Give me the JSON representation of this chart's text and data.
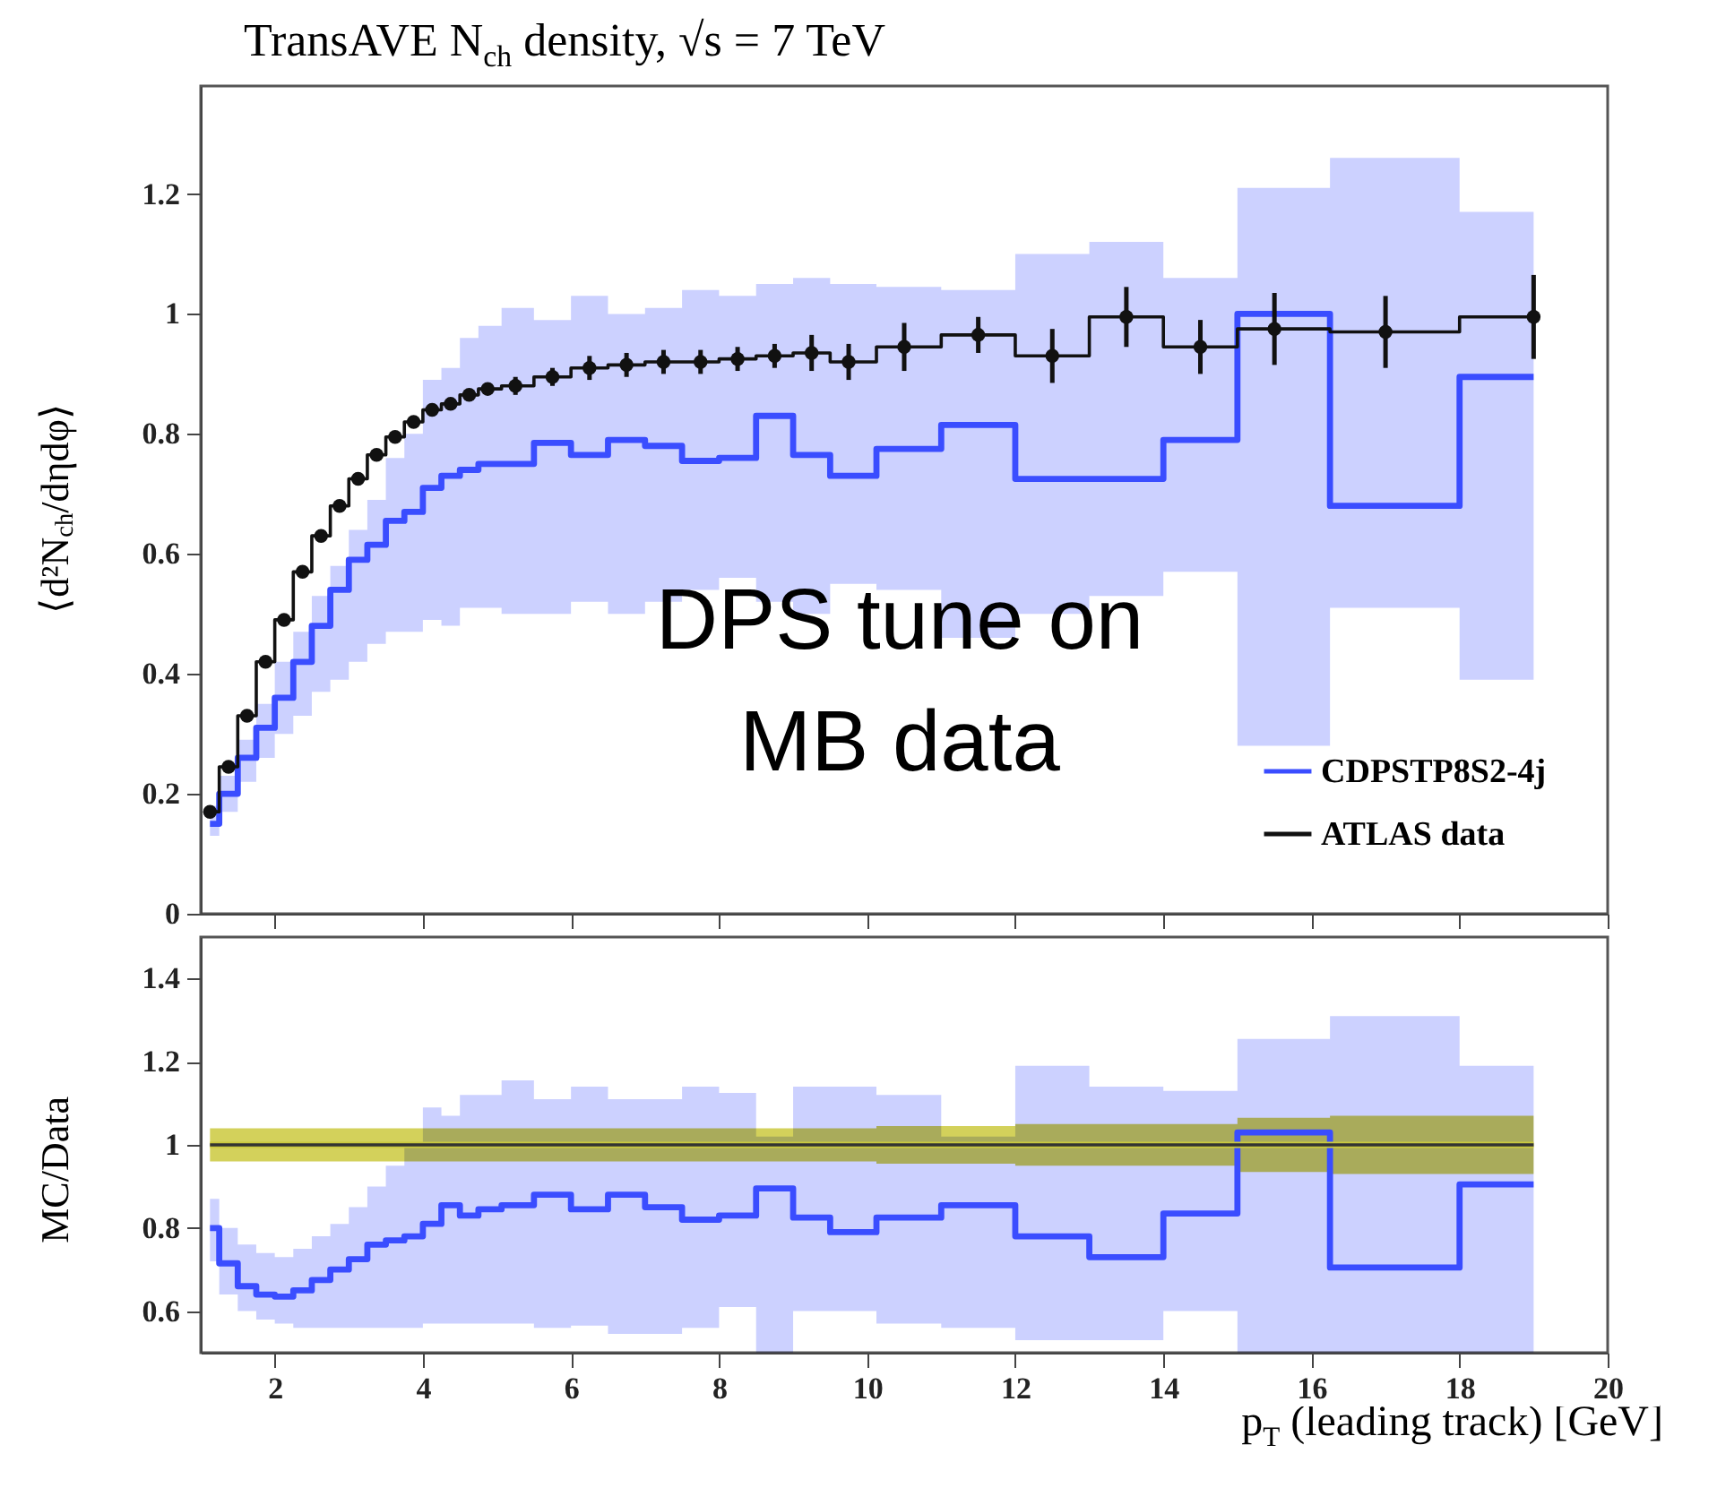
{
  "chart_data": [
    {
      "type": "step",
      "title": "TransAVE N$_{ch}$ density, √s = 7 TeV",
      "ylabel": "⟨d²N$_{ch}$/dηdφ⟩",
      "annotations": [
        "DPS tune on\nMB data"
      ],
      "x": [
        1.125,
        1.375,
        1.625,
        1.875,
        2.125,
        2.375,
        2.625,
        2.875,
        3.125,
        3.375,
        3.625,
        3.875,
        4.125,
        4.375,
        4.625,
        4.875,
        5.25,
        5.75,
        6.25,
        6.75,
        7.25,
        7.75,
        8.25,
        8.75,
        9.25,
        9.75,
        10.5,
        11.5,
        12.5,
        13.5,
        14.5,
        15.5,
        17,
        19
      ],
      "series": [
        {
          "name": "CDPSTP8S2-4j",
          "color": "#3a4dff",
          "marker": "none",
          "values": [
            0.15,
            0.2,
            0.26,
            0.31,
            0.36,
            0.42,
            0.48,
            0.54,
            0.59,
            0.615,
            0.655,
            0.67,
            0.71,
            0.73,
            0.74,
            0.75,
            0.75,
            0.785,
            0.765,
            0.79,
            0.78,
            0.755,
            0.76,
            0.83,
            0.765,
            0.73,
            0.775,
            0.815,
            0.725,
            0.725,
            0.79,
            1.0,
            0.68,
            0.895
          ],
          "lower": [
            0.13,
            0.17,
            0.22,
            0.26,
            0.3,
            0.33,
            0.37,
            0.39,
            0.42,
            0.45,
            0.47,
            0.47,
            0.49,
            0.48,
            0.51,
            0.51,
            0.5,
            0.5,
            0.52,
            0.5,
            0.52,
            0.54,
            0.56,
            0.52,
            0.5,
            0.55,
            0.54,
            0.46,
            0.5,
            0.53,
            0.57,
            0.28,
            0.51,
            0.39
          ],
          "upper": [
            0.18,
            0.23,
            0.29,
            0.35,
            0.42,
            0.47,
            0.53,
            0.58,
            0.64,
            0.69,
            0.76,
            0.8,
            0.89,
            0.91,
            0.96,
            0.98,
            1.01,
            0.99,
            1.03,
            1.0,
            1.01,
            1.04,
            1.03,
            1.05,
            1.06,
            1.05,
            1.045,
            1.04,
            1.1,
            1.12,
            1.06,
            1.21,
            1.26,
            1.17
          ]
        },
        {
          "name": "ATLAS data",
          "color": "#111111",
          "marker": "circle",
          "values": [
            0.17,
            0.245,
            0.33,
            0.42,
            0.49,
            0.57,
            0.63,
            0.68,
            0.725,
            0.765,
            0.795,
            0.82,
            0.84,
            0.85,
            0.865,
            0.875,
            0.88,
            0.895,
            0.91,
            0.915,
            0.92,
            0.92,
            0.925,
            0.93,
            0.935,
            0.92,
            0.945,
            0.965,
            0.93,
            0.995,
            0.945,
            0.975,
            0.97,
            0.995
          ],
          "errors": [
            0.01,
            0.01,
            0.01,
            0.01,
            0.01,
            0.01,
            0.01,
            0.01,
            0.01,
            0.01,
            0.01,
            0.01,
            0.01,
            0.01,
            0.01,
            0.01,
            0.015,
            0.015,
            0.02,
            0.02,
            0.02,
            0.02,
            0.02,
            0.02,
            0.03,
            0.03,
            0.04,
            0.03,
            0.045,
            0.05,
            0.045,
            0.06,
            0.06,
            0.07
          ]
        }
      ],
      "xlim": [
        1,
        20
      ],
      "xticks": [
        2,
        4,
        6,
        8,
        10,
        12,
        14,
        16,
        18,
        20
      ],
      "ylim": [
        0,
        1.38
      ],
      "yticks": [
        0,
        0.2,
        0.4,
        0.6,
        0.8,
        1,
        1.2
      ],
      "tick_labels": "y",
      "legend": "bottom right"
    },
    {
      "type": "step",
      "ylabel": "MC/Data",
      "xlabel": "p$_{T}$ (leading track) [GeV]",
      "x": [
        1.125,
        1.375,
        1.625,
        1.875,
        2.125,
        2.375,
        2.625,
        2.875,
        3.125,
        3.375,
        3.625,
        3.875,
        4.125,
        4.375,
        4.625,
        4.875,
        5.25,
        5.75,
        6.25,
        6.75,
        7.25,
        7.75,
        8.25,
        8.75,
        9.25,
        9.75,
        10.5,
        11.5,
        12.5,
        13.5,
        14.5,
        15.5,
        17,
        19
      ],
      "series": [
        {
          "color": "#3a4dff",
          "values": [
            0.8,
            0.715,
            0.66,
            0.64,
            0.635,
            0.65,
            0.675,
            0.7,
            0.725,
            0.76,
            0.77,
            0.78,
            0.81,
            0.855,
            0.83,
            0.845,
            0.855,
            0.88,
            0.845,
            0.88,
            0.85,
            0.82,
            0.83,
            0.895,
            0.825,
            0.79,
            0.825,
            0.855,
            0.78,
            0.73,
            0.835,
            1.03,
            0.705,
            0.905
          ],
          "lower": [
            0.72,
            0.64,
            0.6,
            0.58,
            0.57,
            0.56,
            0.56,
            0.56,
            0.56,
            0.56,
            0.56,
            0.56,
            0.57,
            0.57,
            0.57,
            0.57,
            0.57,
            0.56,
            0.565,
            0.545,
            0.545,
            0.56,
            0.61,
            0.5,
            0.6,
            0.6,
            0.57,
            0.56,
            0.53,
            0.53,
            0.6,
            0.5,
            0.5,
            0.5
          ],
          "upper": [
            0.87,
            0.8,
            0.76,
            0.74,
            0.73,
            0.75,
            0.78,
            0.81,
            0.85,
            0.9,
            0.95,
            1.0,
            1.09,
            1.07,
            1.12,
            1.12,
            1.155,
            1.11,
            1.14,
            1.11,
            1.11,
            1.14,
            1.125,
            1.02,
            1.14,
            1.14,
            1.12,
            1.02,
            1.19,
            1.14,
            1.13,
            1.255,
            1.31,
            1.19
          ]
        },
        {
          "color": "#cbc93e",
          "values": [
            1,
            1,
            1,
            1,
            1,
            1,
            1,
            1,
            1,
            1,
            1,
            1,
            1,
            1,
            1,
            1,
            1,
            1,
            1,
            1,
            1,
            1,
            1,
            1,
            1,
            1,
            1,
            1,
            1,
            1,
            1,
            1,
            1,
            1
          ],
          "lower": [
            0.96,
            0.96,
            0.96,
            0.96,
            0.96,
            0.96,
            0.96,
            0.96,
            0.96,
            0.96,
            0.96,
            0.96,
            0.96,
            0.96,
            0.96,
            0.96,
            0.96,
            0.96,
            0.96,
            0.96,
            0.96,
            0.96,
            0.96,
            0.96,
            0.96,
            0.96,
            0.955,
            0.955,
            0.95,
            0.95,
            0.95,
            0.935,
            0.93,
            0.93
          ],
          "upper": [
            1.04,
            1.04,
            1.04,
            1.04,
            1.04,
            1.04,
            1.04,
            1.04,
            1.04,
            1.04,
            1.04,
            1.04,
            1.04,
            1.04,
            1.04,
            1.04,
            1.04,
            1.04,
            1.04,
            1.04,
            1.04,
            1.04,
            1.04,
            1.04,
            1.04,
            1.04,
            1.045,
            1.045,
            1.05,
            1.05,
            1.05,
            1.065,
            1.07,
            1.07
          ]
        },
        {
          "color": "#333333",
          "values": [
            1,
            1,
            1,
            1,
            1,
            1,
            1,
            1,
            1,
            1,
            1,
            1,
            1,
            1,
            1,
            1,
            1,
            1,
            1,
            1,
            1,
            1,
            1,
            1,
            1,
            1,
            1,
            1,
            1,
            1,
            1,
            1,
            1,
            1
          ]
        }
      ],
      "xlim": [
        1,
        20
      ],
      "xticks": [
        2,
        4,
        6,
        8,
        10,
        12,
        14,
        16,
        18,
        20
      ],
      "ylim": [
        0.5,
        1.5
      ],
      "yticks": [
        0.6,
        0.8,
        1,
        1.2,
        1.4
      ]
    }
  ]
}
